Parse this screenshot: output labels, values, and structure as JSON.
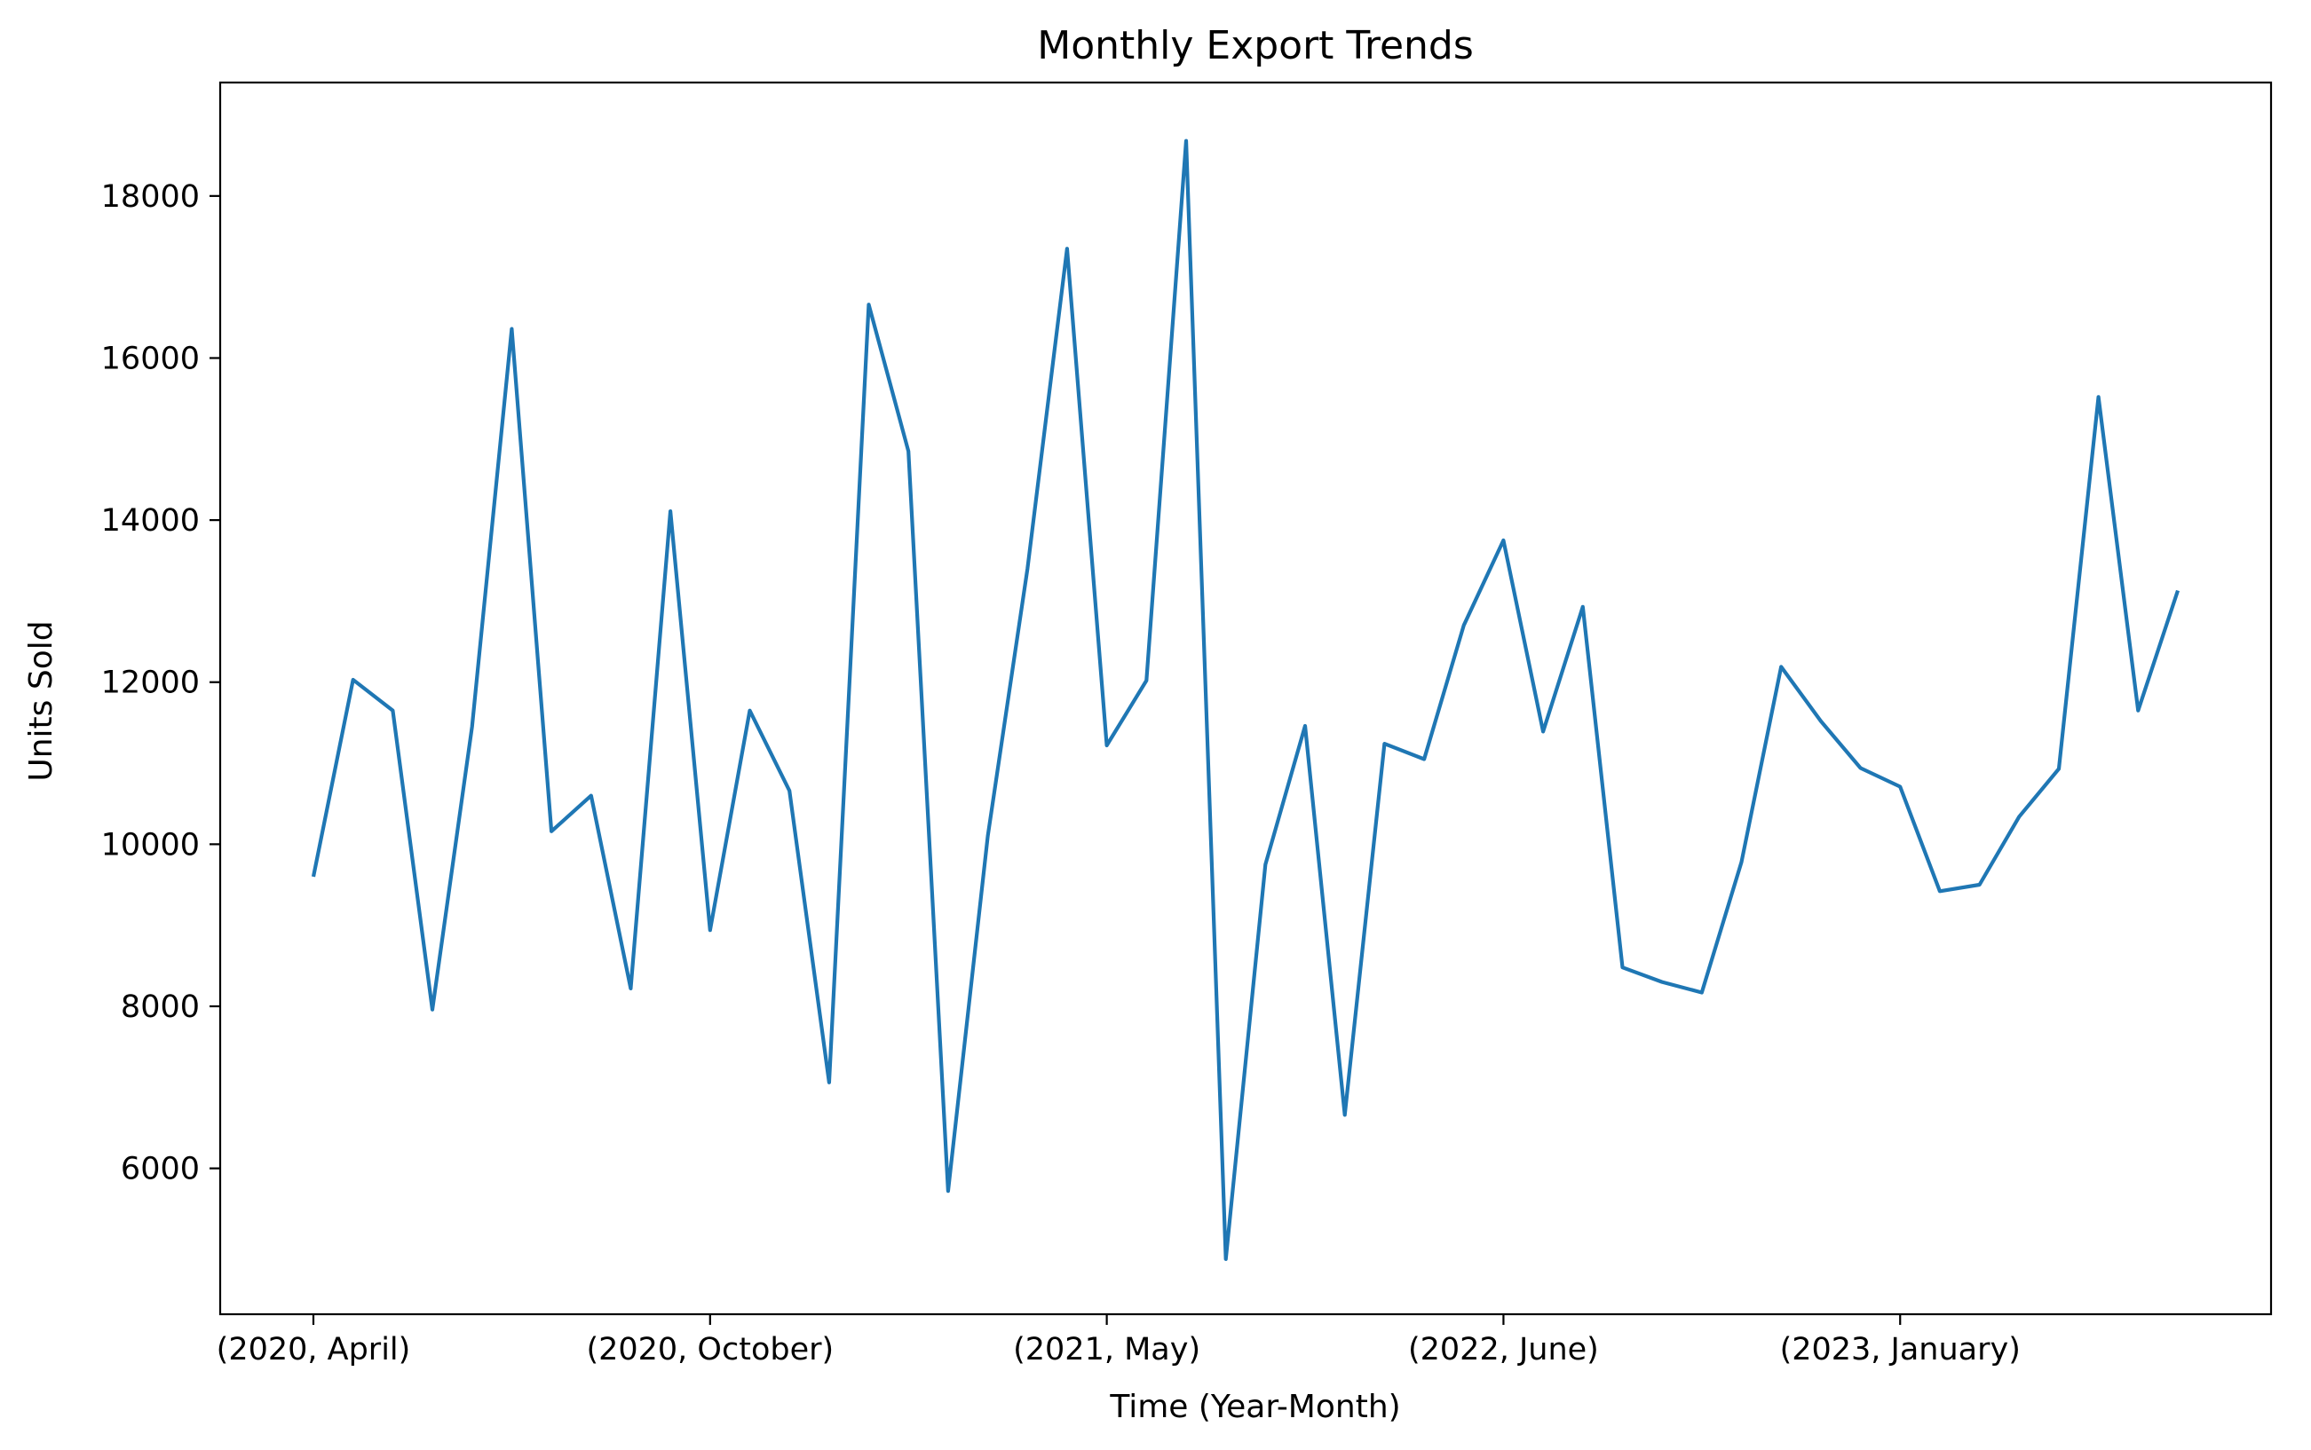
{
  "chart_data": {
    "type": "line",
    "title": "Monthly Export Trends",
    "xlabel": "Time (Year-Month)",
    "ylabel": "Units Sold",
    "x_tick_labels": [
      {
        "index": 0,
        "label": "(2020, April)"
      },
      {
        "index": 10,
        "label": "(2020, October)"
      },
      {
        "index": 20,
        "label": "(2021, May)"
      },
      {
        "index": 30,
        "label": "(2022, June)"
      },
      {
        "index": 40,
        "label": "(2023, January)"
      }
    ],
    "y_ticks": [
      6000,
      8000,
      10000,
      12000,
      14000,
      16000,
      18000
    ],
    "ylim": [
      4200,
      19400
    ],
    "xlim": [
      -2.35,
      49.35
    ],
    "grid": false,
    "legend": "none",
    "series": [
      {
        "color": "#1f77b4",
        "values": [
          9600,
          12030,
          11650,
          7960,
          11450,
          16360,
          10160,
          10600,
          8220,
          14110,
          8940,
          11650,
          10660,
          7060,
          16660,
          14850,
          5720,
          10100,
          13400,
          17350,
          11220,
          12020,
          18680,
          4880,
          9750,
          11460,
          6660,
          11240,
          11050,
          12700,
          13750,
          11390,
          12930,
          8480,
          8300,
          8170,
          9780,
          12190,
          11520,
          10940,
          10710,
          9420,
          9500,
          10340,
          10930,
          15520,
          11650,
          13130
        ]
      }
    ]
  }
}
